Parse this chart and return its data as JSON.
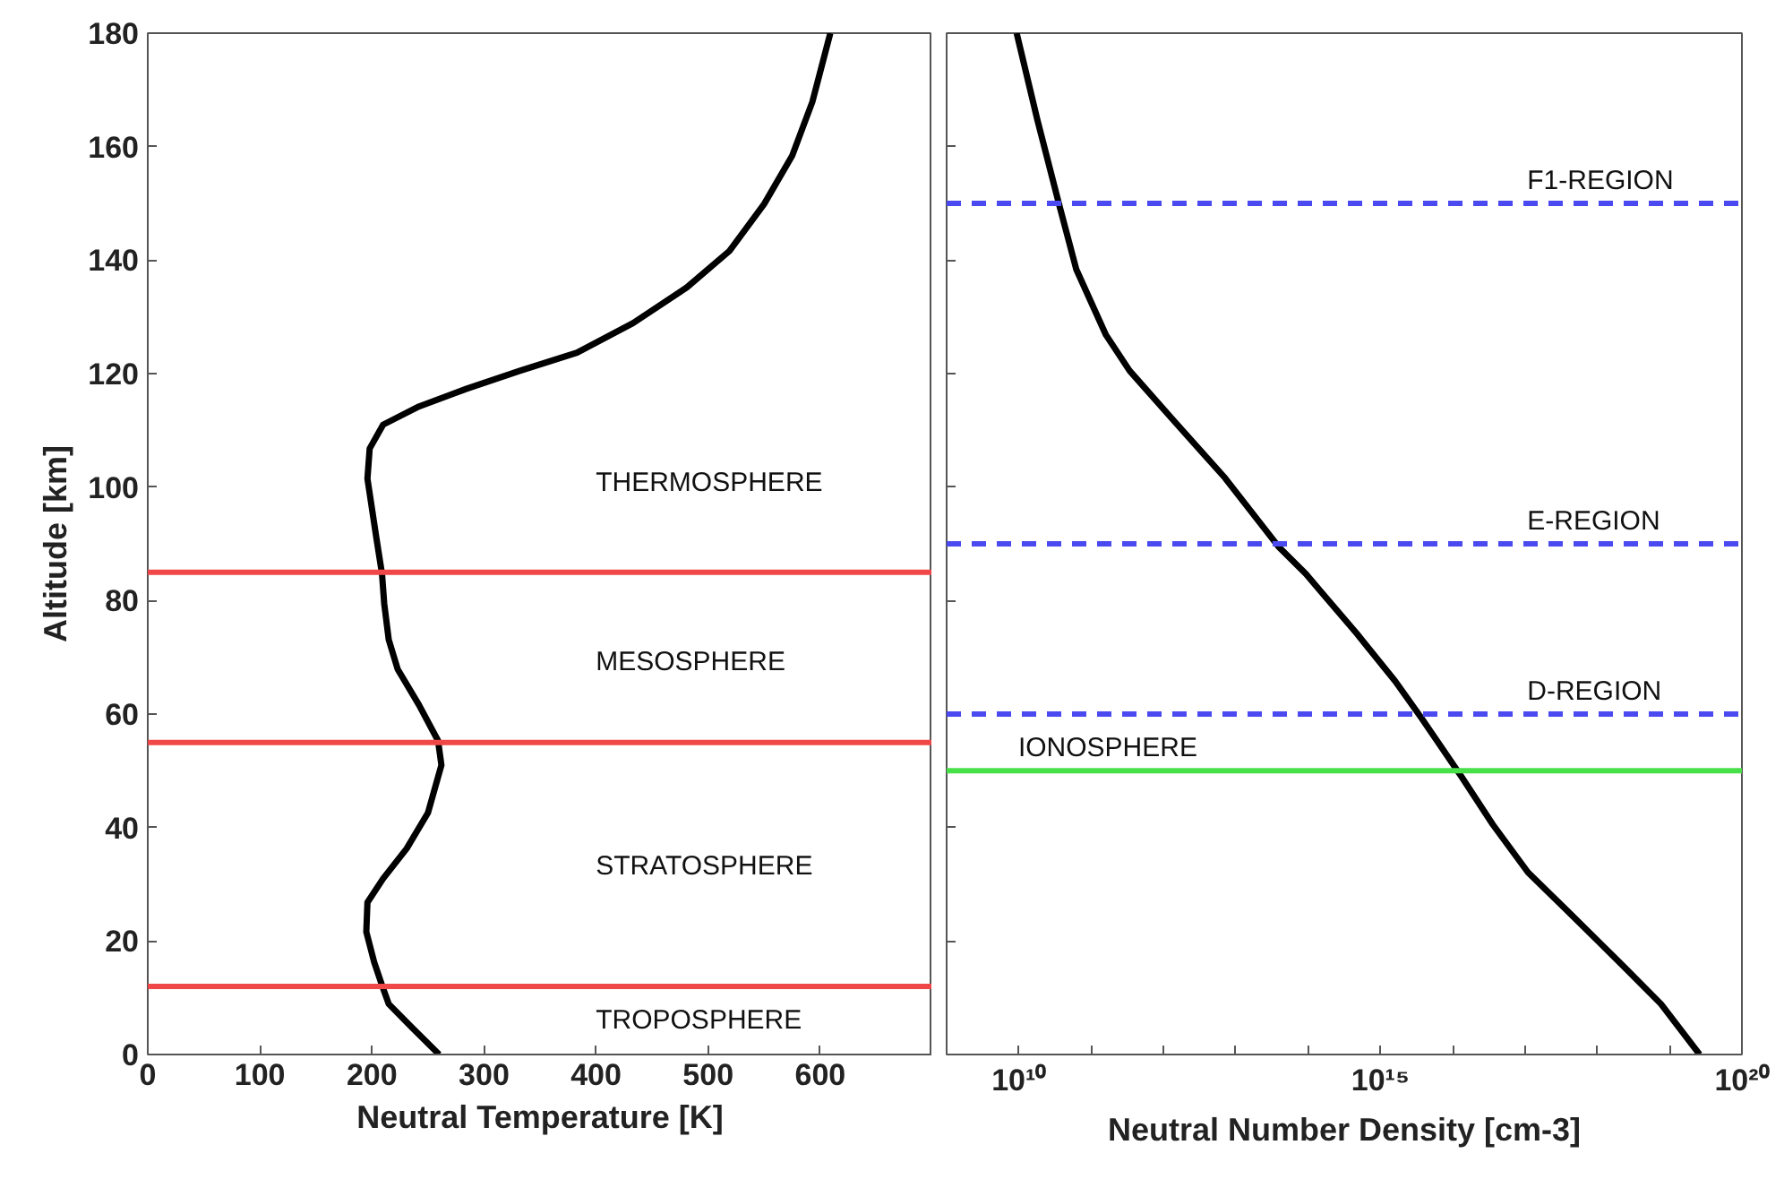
{
  "chart_data": [
    {
      "type": "line",
      "xlabel": "Neutral Temperature [K]",
      "ylabel": "Altitude [km]",
      "xlim": [
        0,
        700
      ],
      "xticks": [
        0,
        100,
        200,
        300,
        400,
        500,
        600
      ],
      "ylim": [
        0,
        180
      ],
      "yticks": [
        0,
        20,
        40,
        60,
        80,
        100,
        120,
        140,
        160,
        180
      ],
      "series": [
        {
          "color": "#000000",
          "x": [
            260,
            236,
            215,
            209,
            202,
            195,
            196,
            210,
            231,
            250,
            262,
            259,
            242,
            223,
            215,
            211,
            209,
            204,
            196,
            198,
            210,
            242,
            284,
            332,
            383,
            433,
            481,
            519,
            550,
            575,
            593,
            609
          ],
          "values": [
            0,
            4.7,
            8.9,
            12.2,
            16.3,
            21.6,
            26.8,
            31,
            36.3,
            42.6,
            51,
            55.3,
            61.6,
            67.9,
            73.1,
            79.4,
            84.7,
            91,
            101.5,
            106.8,
            111,
            114.2,
            117.3,
            120.5,
            123.7,
            128.9,
            135.2,
            141.6,
            149.9,
            158.4,
            167.9,
            180
          ]
        }
      ],
      "ref_lines": [
        {
          "axis": "y",
          "value": 85,
          "color": "#f04848"
        },
        {
          "axis": "y",
          "value": 55,
          "color": "#f04848"
        },
        {
          "axis": "y",
          "value": 12,
          "color": "#f04848"
        }
      ],
      "annotations": [
        "THERMOSPHERE",
        "MESOSPHERE",
        "STRATOSPHERE",
        "TROPOSPHERE"
      ]
    },
    {
      "type": "line",
      "xlabel": "Neutral Number Density [cm-3]",
      "log": "x",
      "tick_labels": "x",
      "xlim": [
        1000000000.0,
        1e+20
      ],
      "xticks": [
        {
          "value": 10000000000.0,
          "label": "10¹⁰"
        },
        {
          "value": 100000000000.0,
          "label": null
        },
        {
          "value": 1000000000000.0,
          "label": null
        },
        {
          "value": 10000000000000.0,
          "label": null
        },
        {
          "value": 100000000000000.0,
          "label": null
        },
        {
          "value": 1000000000000000.0,
          "label": "10¹⁵"
        },
        {
          "value": 1e+16,
          "label": null
        },
        {
          "value": 1e+17,
          "label": null
        },
        {
          "value": 1e+18,
          "label": null
        },
        {
          "value": 1e+19,
          "label": null
        },
        {
          "value": 1e+20,
          "label": "10²⁰"
        }
      ],
      "ylim": [
        0,
        180
      ],
      "yticks": [
        0,
        20,
        40,
        60,
        80,
        100,
        120,
        140,
        160,
        180
      ],
      "series": [
        {
          "color": "#000000",
          "x": [
            9300000000.0,
            18000000000.0,
            36000000000.0,
            62000000000.0,
            160000000000.0,
            340000000000.0,
            1300000000000.0,
            7100000000000.0,
            39000000000000.0,
            93000000000000.0,
            150000000000000.0,
            470000000000000.0,
            1600000000000000.0,
            3700000000000000.0,
            1.3e+16,
            3.6e+16,
            1.1e+17,
            5.2e+17,
            2.4e+18,
            7.6e+18,
            2.6e+19
          ],
          "values": [
            180,
            164.7,
            149.8,
            138.4,
            126.8,
            120.5,
            112.1,
            101.6,
            89.5,
            84.7,
            81.6,
            74.2,
            65.8,
            59.3,
            49.1,
            40.5,
            32.1,
            23.7,
            15.3,
            8.9,
            0
          ]
        }
      ],
      "ref_lines": [
        {
          "axis": "y",
          "value": 150,
          "color": "#4a4af0",
          "line_style": "dashed",
          "label": "F1-REGION"
        },
        {
          "axis": "y",
          "value": 90,
          "color": "#4a4af0",
          "line_style": "dashed",
          "label": "E-REGION"
        },
        {
          "axis": "y",
          "value": 60,
          "color": "#4a4af0",
          "line_style": "dashed",
          "label": "D-REGION"
        },
        {
          "axis": "y",
          "value": 50,
          "color": "#48e048",
          "label": "IONOSPHERE"
        }
      ]
    }
  ]
}
